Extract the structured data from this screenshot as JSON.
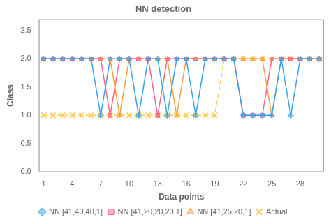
{
  "chart_data": {
    "type": "line",
    "title": "NN detection",
    "xlabel": "Data points",
    "ylabel": "Class",
    "x": [
      1,
      2,
      3,
      4,
      5,
      6,
      7,
      8,
      9,
      10,
      11,
      12,
      13,
      14,
      15,
      16,
      17,
      18,
      19,
      20,
      21,
      22,
      23,
      24,
      25,
      26,
      27,
      28,
      29,
      30
    ],
    "series": [
      {
        "name": "NN [41,40,40,1]",
        "marker": "diamond",
        "line_style": "solid",
        "values": [
          2,
          2,
          2,
          2,
          2,
          2,
          1,
          2,
          2,
          2,
          1,
          2,
          2,
          1,
          2,
          2,
          1,
          2,
          2,
          2,
          2,
          1,
          1,
          1,
          1,
          2,
          1,
          2,
          2,
          2
        ]
      },
      {
        "name": "NN [41,20,20,20,1]",
        "marker": "square",
        "line_style": "solid",
        "values": [
          2,
          2,
          2,
          2,
          2,
          2,
          2,
          1,
          2,
          2,
          2,
          2,
          1,
          2,
          2,
          2,
          2,
          2,
          2,
          2,
          2,
          1,
          1,
          1,
          2,
          2,
          2,
          2,
          2,
          2
        ]
      },
      {
        "name": "NN [41,25,20,1]",
        "marker": "triangle",
        "line_style": "solid",
        "values": [
          2,
          2,
          2,
          2,
          2,
          2,
          2,
          2,
          1,
          2,
          2,
          2,
          2,
          2,
          1,
          2,
          2,
          2,
          2,
          2,
          2,
          2,
          2,
          2,
          1,
          2,
          2,
          2,
          2,
          2
        ]
      },
      {
        "name": "Actual",
        "marker": "x",
        "line_style": "dashed",
        "values": [
          1,
          1,
          1,
          1,
          1,
          1,
          1,
          1,
          1,
          1,
          1,
          1,
          1,
          1,
          1,
          1,
          1,
          1,
          1,
          2,
          2,
          2,
          2,
          2,
          2,
          2,
          2,
          2,
          2,
          2
        ]
      }
    ],
    "xlim": [
      0.5,
      30.5
    ],
    "xticks": [
      1,
      4,
      7,
      10,
      13,
      16,
      19,
      22,
      25,
      28
    ],
    "ylim": [
      0,
      2.7
    ],
    "yticks": [
      {
        "value": 0,
        "label": "0.0"
      },
      {
        "value": 0.5,
        "label": "0.5"
      },
      {
        "value": 1,
        "label": "1.0"
      },
      {
        "value": 1.5,
        "label": "1.5"
      },
      {
        "value": 2,
        "label": "2.0"
      },
      {
        "value": 2.5,
        "label": "2.5"
      }
    ],
    "grid": false,
    "legend": "bottom"
  }
}
